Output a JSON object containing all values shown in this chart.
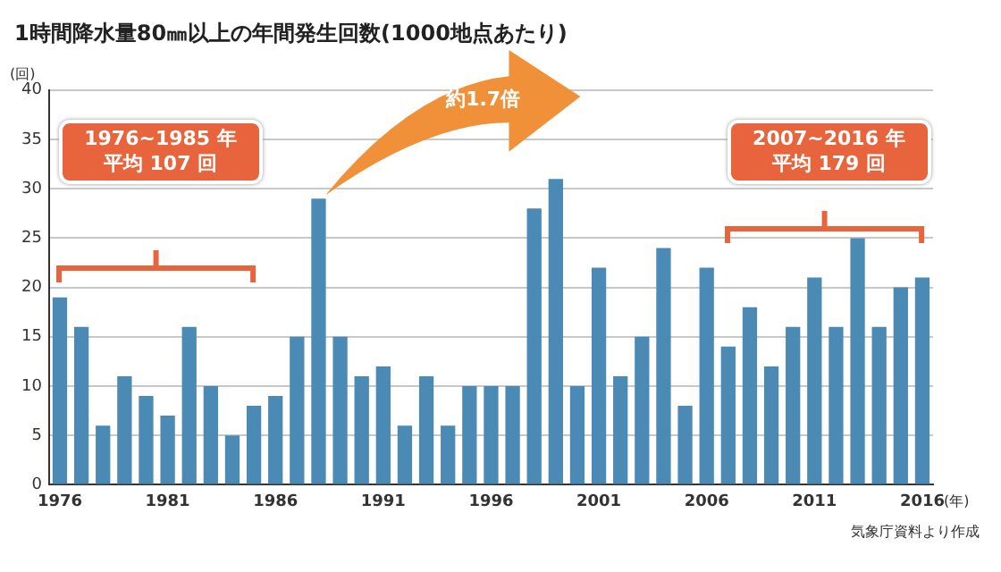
{
  "chart_data": {
    "type": "bar",
    "title": "1時間降水量80㎜以上の年間発生回数(1000地点あたり)",
    "ylabel": "(回)",
    "xlabel": "(年)",
    "categories": [
      "1976",
      null,
      null,
      null,
      null,
      "1981",
      null,
      null,
      null,
      null,
      "1986",
      null,
      null,
      null,
      null,
      "1991",
      null,
      null,
      null,
      null,
      "1996",
      null,
      null,
      null,
      null,
      "2001",
      null,
      null,
      null,
      null,
      "2006",
      null,
      null,
      null,
      null,
      "2011",
      null,
      null,
      null,
      null,
      "2016"
    ],
    "values": [
      19,
      16,
      6,
      11,
      9,
      7,
      16,
      10,
      5,
      8,
      9,
      15,
      29,
      15,
      11,
      12,
      6,
      11,
      6,
      10,
      10,
      10,
      28,
      31,
      10,
      22,
      11,
      15,
      24,
      8,
      22,
      14,
      18,
      12,
      16,
      21,
      16,
      25,
      16,
      20,
      21
    ],
    "color": "#4a8ab5",
    "ylim": [
      0,
      40
    ],
    "yticks": [
      0,
      5,
      10,
      15,
      20,
      25,
      30,
      35,
      40
    ],
    "grid": "y",
    "annotations": [
      "1976~1985 年",
      "平均 107 回",
      "2007~2016 年",
      "平均 179 回",
      "約1.7倍",
      "気象庁資料より作成"
    ]
  }
}
